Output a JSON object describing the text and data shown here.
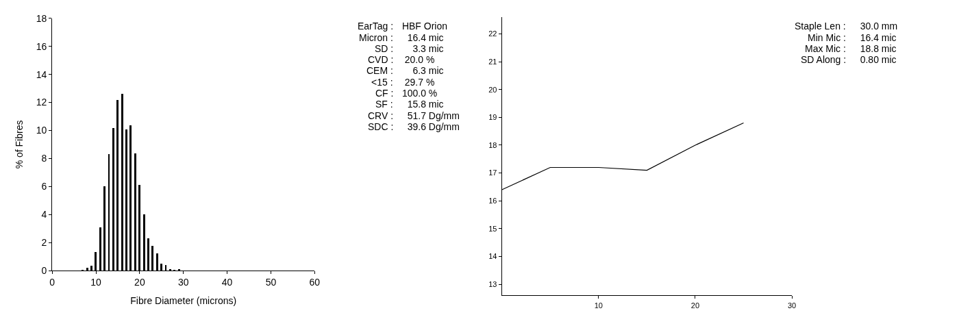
{
  "chart_data": [
    {
      "type": "bar",
      "xlabel": "Fibre Diameter (microns)",
      "ylabel": "% of Fibres",
      "x": [
        7,
        8,
        9,
        10,
        11,
        12,
        13,
        14,
        15,
        16,
        17,
        18,
        19,
        20,
        21,
        22,
        23,
        24,
        25,
        26,
        27,
        28,
        29
      ],
      "values": [
        0.05,
        0.2,
        0.35,
        1.35,
        3.1,
        6.0,
        8.3,
        10.2,
        12.2,
        12.6,
        10.1,
        10.35,
        8.35,
        6.1,
        4.0,
        2.3,
        1.75,
        1.25,
        0.5,
        0.4,
        0.1,
        0.05,
        0.1
      ],
      "color": "#000000",
      "xlim": [
        0,
        60
      ],
      "xticks": [
        0,
        10,
        20,
        30,
        40,
        50,
        60
      ],
      "ylim": [
        0,
        18
      ],
      "yticks": [
        0,
        2,
        4,
        6,
        8,
        10,
        12,
        14,
        16,
        18
      ],
      "annotations": [
        "EarTag : HBF Orion",
        "Micron :   16.4 mic",
        "SD :     3.3 mic",
        "CVD :  20.0 %",
        "CEM :     6.3 mic",
        "<15 :  29.7 %",
        "CF : 100.0 %",
        "SF :   15.8 mic",
        "CRV :   51.7 Dg/mm",
        "SDC :   39.6 Dg/mm"
      ]
    },
    {
      "type": "line",
      "x": [
        0,
        5,
        10,
        15,
        20,
        25
      ],
      "values": [
        16.4,
        17.2,
        17.2,
        17.1,
        18.0,
        18.8
      ],
      "color": "#000000",
      "xlim": [
        0,
        30
      ],
      "xticks": [
        10,
        20,
        30
      ],
      "ylim": [
        12.6,
        22.6
      ],
      "yticks": [
        13,
        14,
        15,
        16,
        17,
        18,
        19,
        20,
        21,
        22
      ],
      "marker": "none",
      "line_style": "solid",
      "annotations": [
        "Staple Len :   30.0 mm",
        "Min Mic :   16.4 mic",
        "Max Mic :   18.8 mic",
        "SD Along :   0.80 mic"
      ]
    }
  ]
}
